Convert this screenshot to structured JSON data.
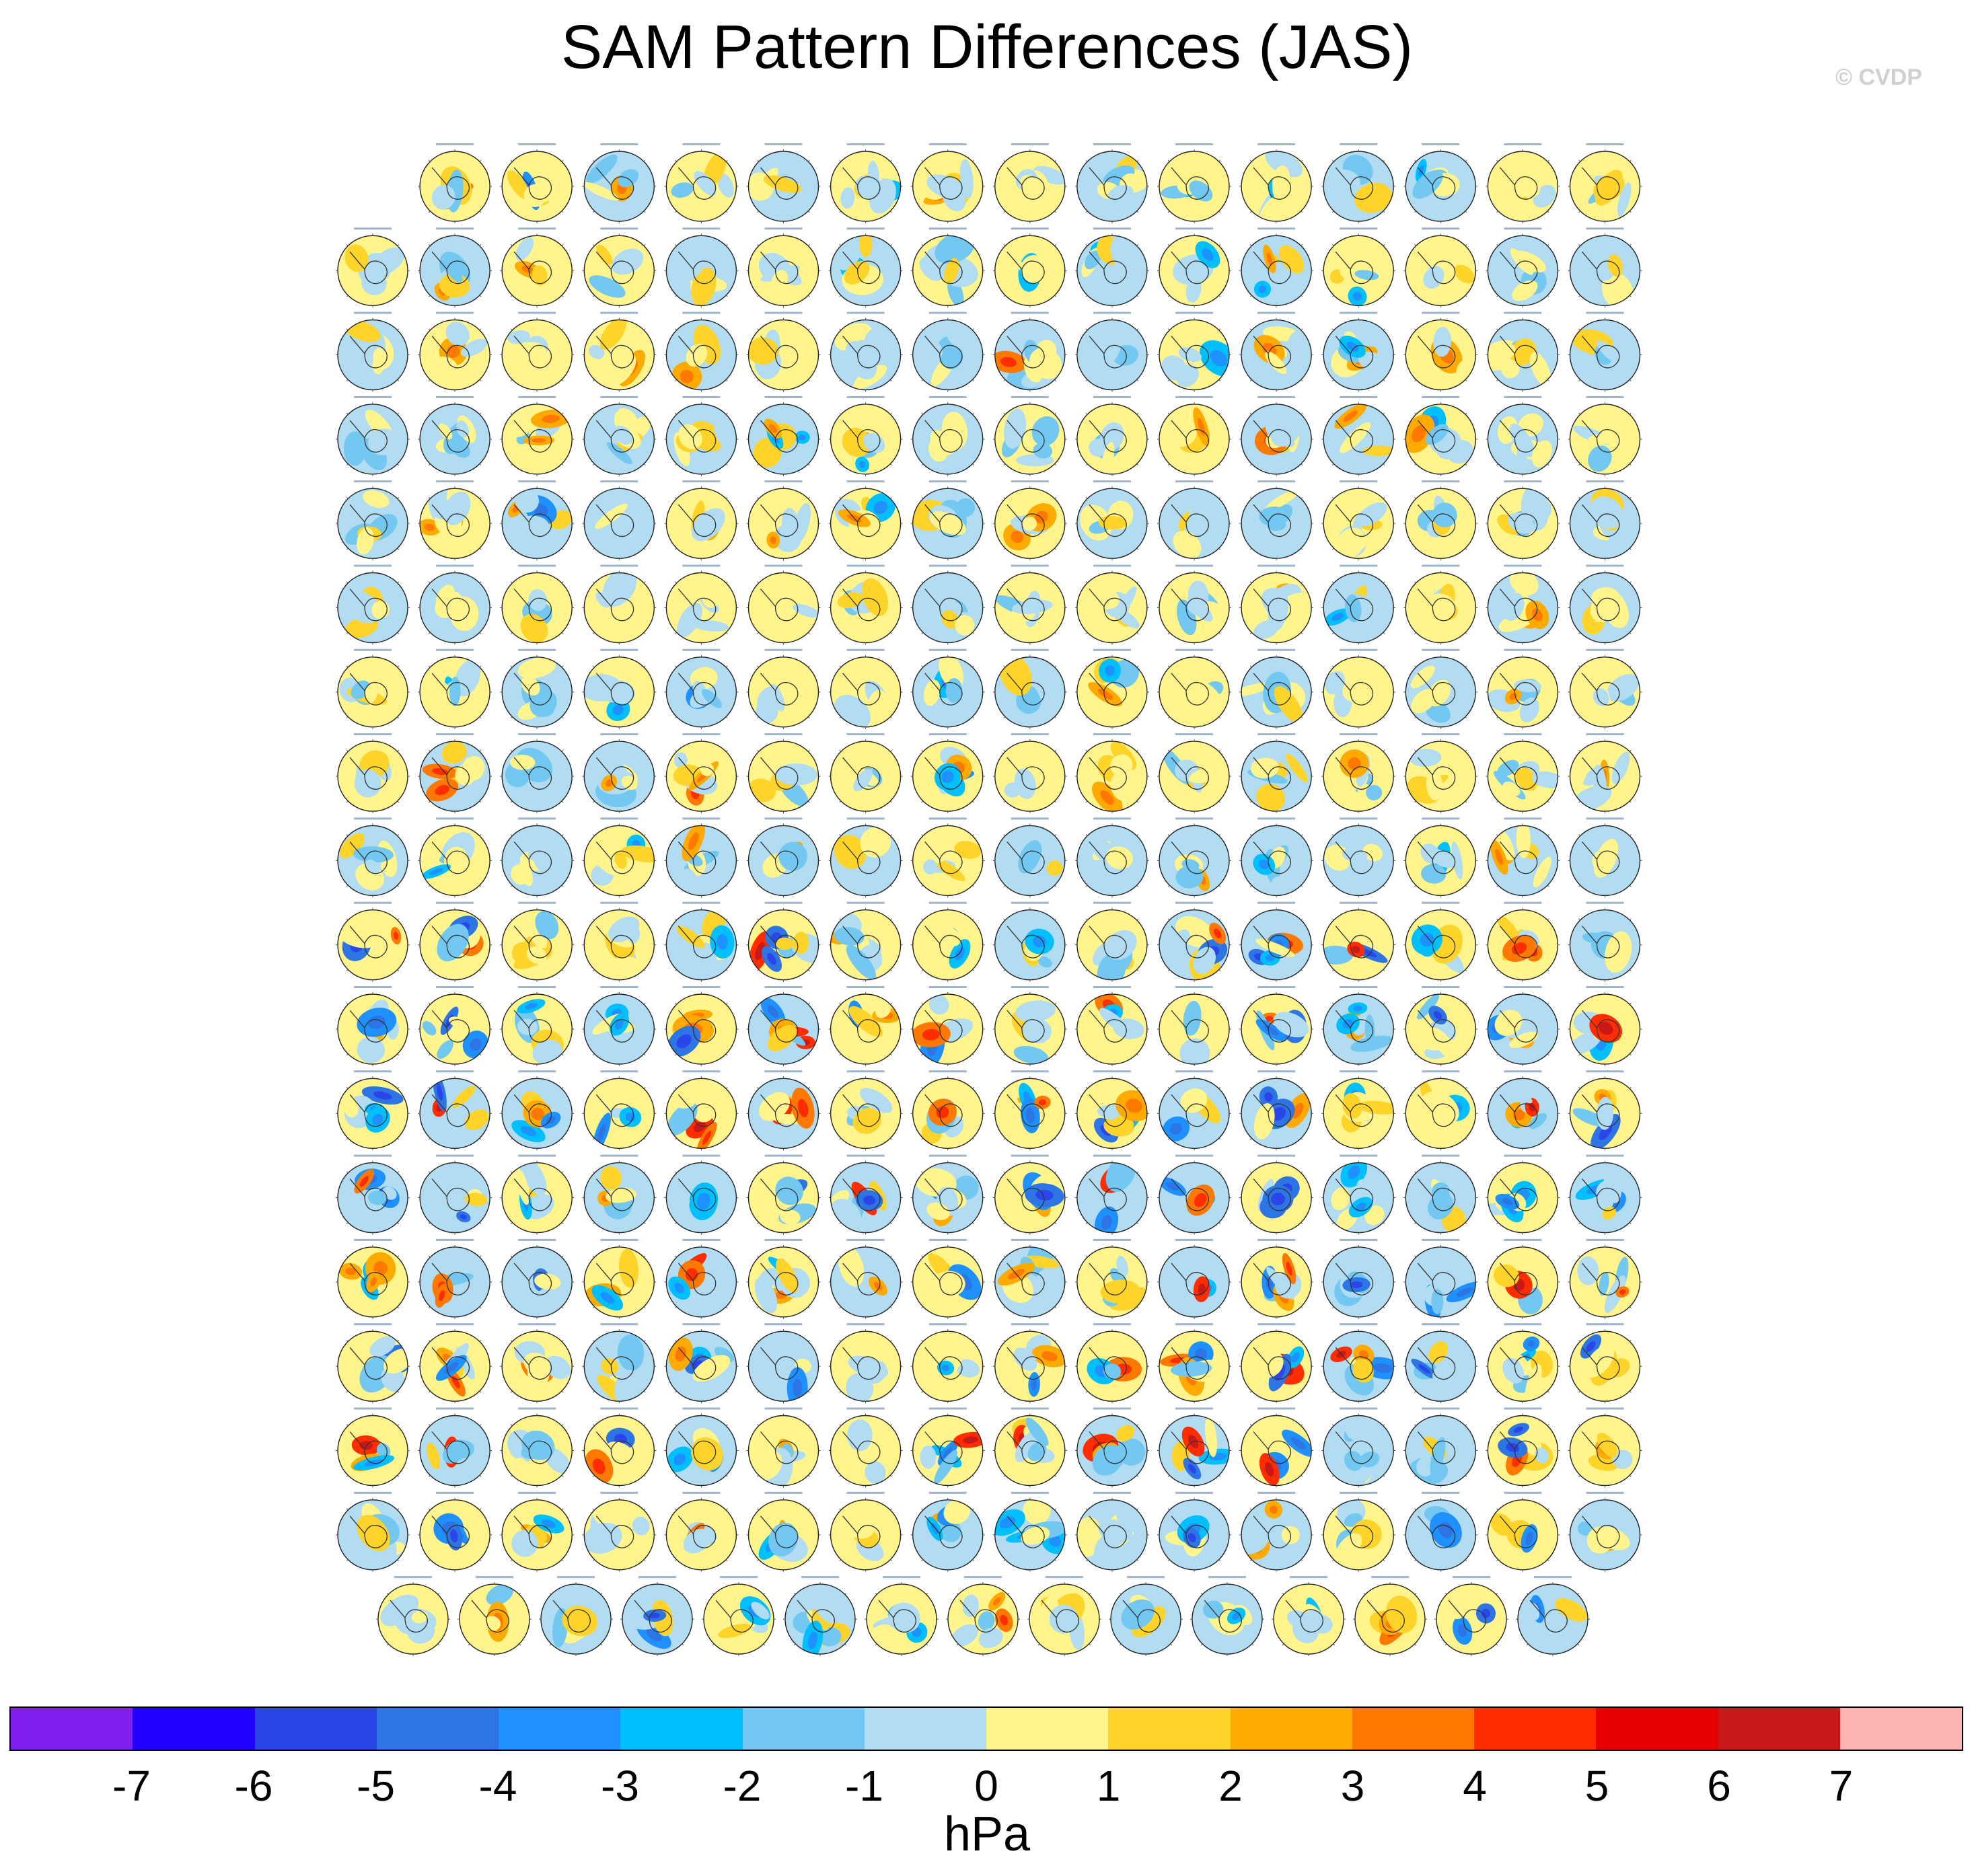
{
  "title": "SAM Pattern Differences (JAS)",
  "copyright": "© CVDP",
  "chart_data": {
    "type": "heatmap",
    "title": "SAM Pattern Differences (JAS)",
    "description_type": "grid of small south-polar-stereographic difference maps",
    "grid": {
      "rows": 18,
      "cols": 16,
      "row_counts": [
        15,
        16,
        16,
        16,
        16,
        16,
        16,
        16,
        16,
        16,
        16,
        16,
        16,
        16,
        16,
        16,
        16,
        15
      ],
      "total_panels": 286
    },
    "colorbar": {
      "units": "hPa",
      "tick_labels": [
        "-7",
        "-6",
        "-5",
        "-4",
        "-3",
        "-2",
        "-1",
        "0",
        "1",
        "2",
        "3",
        "4",
        "5",
        "6",
        "7"
      ],
      "levels": [
        -7,
        -6,
        -5,
        -4,
        -3,
        -2,
        -1,
        0,
        1,
        2,
        3,
        4,
        5,
        6,
        7
      ],
      "colors": [
        "#7f20f0",
        "#1f00ff",
        "#2a45e8",
        "#2d74e4",
        "#1e90ff",
        "#00bfff",
        "#73c8f2",
        "#b1dcf2",
        "#fff58c",
        "#ffd42a",
        "#ffaa00",
        "#ff7800",
        "#ff2d00",
        "#e60000",
        "#c81818",
        "#ffb4b4"
      ]
    }
  }
}
